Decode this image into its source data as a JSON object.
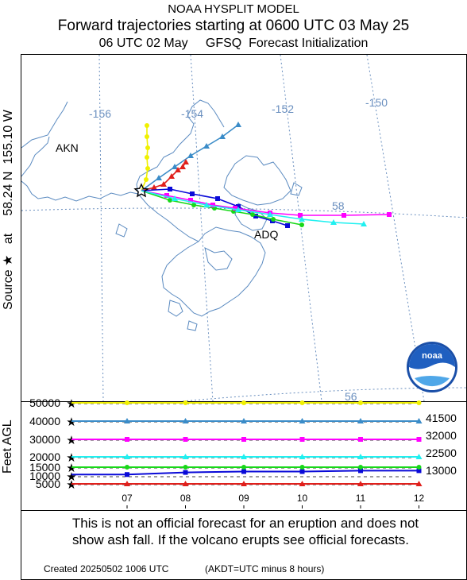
{
  "header": {
    "title": "NOAA HYSPLIT MODEL",
    "subtitle": "Forward trajectories starting at 0600 UTC 03 May 25",
    "init_line": "06 UTC 02 May     GFSQ  Forecast Initialization"
  },
  "map": {
    "source_label_prefix": "Source",
    "source_label_rest": "at     58.24 N  155.10 W",
    "lon_labels": [
      "-156",
      "-154",
      "-152",
      "-150"
    ],
    "lat_labels": [
      "58",
      "56"
    ],
    "places": [
      "AKN",
      "ADQ"
    ],
    "logo_text": "noaa"
  },
  "colors": {
    "red": "#e0201c",
    "blue": "#0a0ad8",
    "green": "#18d818",
    "cyan": "#20f0f0",
    "magenta": "#ff00ff",
    "steelblue": "#3b8cc8",
    "yellow": "#f0f000",
    "coast": "#5a8ac0"
  },
  "chart_data": {
    "type": "line",
    "title": "Forward trajectories starting at 0600 UTC 03 May 25",
    "ylabel": "Feet AGL",
    "x": [
      "07",
      "08",
      "09",
      "10",
      "11",
      "12"
    ],
    "y_ticks": [
      "50000",
      "40000",
      "30000",
      "20000",
      "15000",
      "10000",
      "5000"
    ],
    "ylim": [
      5000,
      50000
    ],
    "series": [
      {
        "color": "red",
        "values": [
          5000,
          5000,
          5000,
          5000,
          5000,
          5000
        ]
      },
      {
        "color": "blue",
        "values": [
          10800,
          12000,
          12500,
          12500,
          13000,
          13000
        ]
      },
      {
        "color": "green",
        "values": [
          15000,
          15000,
          15000,
          15000,
          15000,
          15000
        ]
      },
      {
        "color": "cyan",
        "values": [
          20000,
          20000,
          20000,
          20000,
          20000,
          20000
        ]
      },
      {
        "color": "magenta",
        "values": [
          30000,
          30000,
          30000,
          30000,
          30000,
          30000
        ]
      },
      {
        "color": "steelblue",
        "values": [
          40000,
          40000,
          40000,
          40000,
          40000,
          40000
        ]
      },
      {
        "color": "yellow",
        "values": [
          50000,
          50000,
          50000,
          50000,
          50000,
          50000
        ]
      }
    ],
    "end_labels": [
      "41500",
      "32000",
      "22500",
      "13000"
    ]
  },
  "footer": {
    "disclaimer_1": "This is not an official forecast for an eruption and does not",
    "disclaimer_2": "show ash fall. If the volcano erupts see official forecasts.",
    "created": "Created 20250502 1006 UTC",
    "akdt": "(AKDT=UTC minus 8 hours)"
  }
}
